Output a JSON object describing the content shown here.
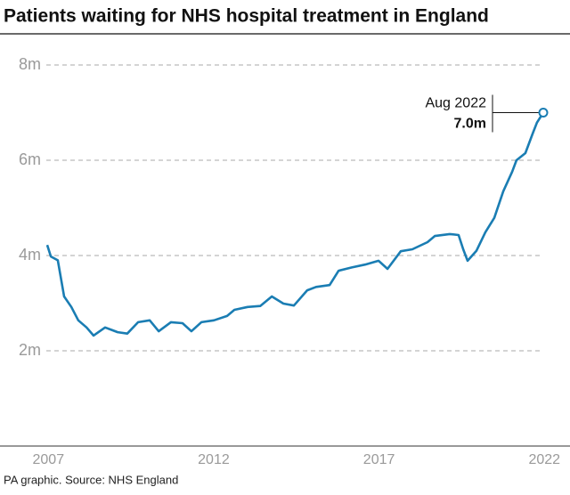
{
  "chart_data": {
    "type": "line",
    "title": "Patients waiting for NHS hospital treatment in England",
    "source": "PA graphic. Source: NHS England",
    "color": "#1a7db3",
    "x": [
      2007.58,
      2007.69,
      2007.9,
      2008.09,
      2008.31,
      2008.52,
      2008.77,
      2008.98,
      2009.33,
      2009.71,
      2010.0,
      2010.33,
      2010.68,
      2010.95,
      2011.32,
      2011.67,
      2011.94,
      2012.24,
      2012.62,
      2013.02,
      2013.24,
      2013.64,
      2014.02,
      2014.37,
      2014.72,
      2015.04,
      2015.44,
      2015.71,
      2016.12,
      2016.39,
      2016.79,
      2017.19,
      2017.6,
      2017.87,
      2018.27,
      2018.62,
      2019.08,
      2019.3,
      2019.75,
      2020.02,
      2020.16,
      2020.29,
      2020.56,
      2020.83,
      2021.1,
      2021.37,
      2021.64,
      2021.77,
      2022.04,
      2022.26,
      2022.39,
      2022.58
    ],
    "values": [
      4.22,
      3.98,
      3.9,
      3.14,
      2.92,
      2.64,
      2.49,
      2.32,
      2.49,
      2.39,
      2.36,
      2.6,
      2.64,
      2.41,
      2.6,
      2.58,
      2.41,
      2.6,
      2.64,
      2.73,
      2.86,
      2.92,
      2.94,
      3.14,
      2.99,
      2.95,
      3.27,
      3.34,
      3.38,
      3.68,
      3.75,
      3.81,
      3.89,
      3.72,
      4.09,
      4.13,
      4.28,
      4.41,
      4.45,
      4.43,
      4.13,
      3.89,
      4.1,
      4.49,
      4.79,
      5.35,
      5.76,
      6.0,
      6.15,
      6.56,
      6.79,
      7.0
    ],
    "xlim": [
      2007,
      2022.58
    ],
    "xticks": [
      2007,
      2012,
      2017,
      2022
    ],
    "ylim": [
      0,
      8
    ],
    "yticks": [
      {
        "value": 2,
        "label": "2m"
      },
      {
        "value": 4,
        "label": "4m"
      },
      {
        "value": 6,
        "label": "6m"
      },
      {
        "value": 8,
        "label": "8m"
      }
    ],
    "grid": true,
    "annotation": {
      "label": "Aug 2022",
      "value_label": "7.0m"
    }
  }
}
